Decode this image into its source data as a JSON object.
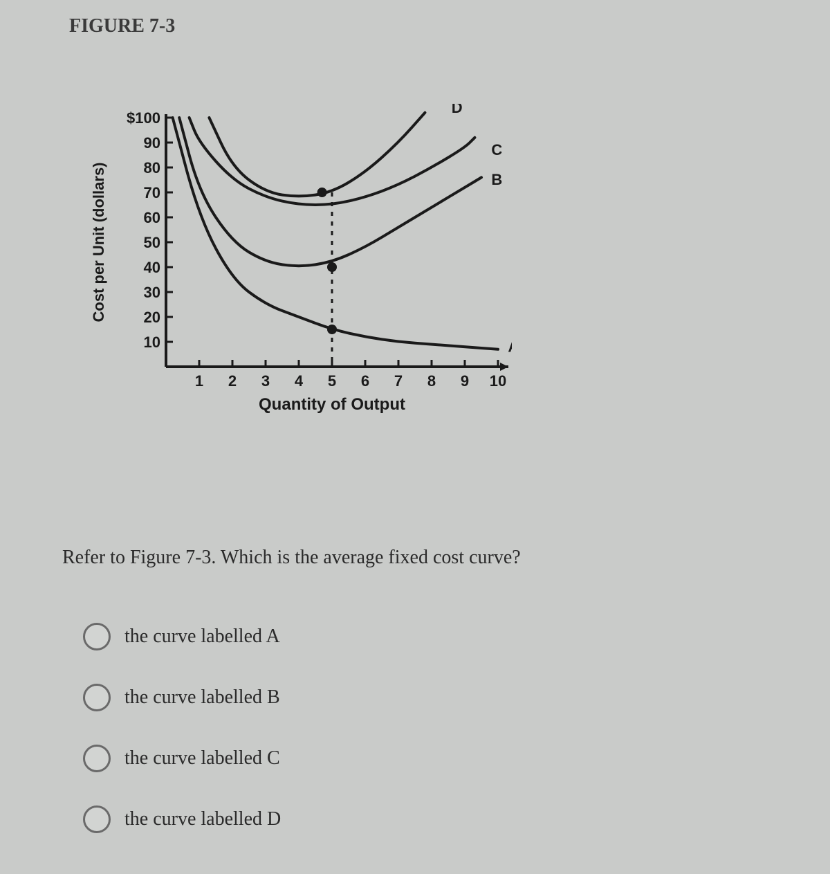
{
  "figure_title": "FIGURE 7-3",
  "question_text": "Refer to Figure 7-3. Which is the average fixed cost curve?",
  "options": [
    {
      "id": "opt-a",
      "label": "the curve labelled A"
    },
    {
      "id": "opt-b",
      "label": "the curve labelled B"
    },
    {
      "id": "opt-c",
      "label": "the curve labelled C"
    },
    {
      "id": "opt-d",
      "label": "the curve labelled D"
    }
  ],
  "chart": {
    "type": "line",
    "background_color": "#c9cbc9",
    "axis_color": "#1a1a1a",
    "axis_width": 4,
    "curve_color": "#1a1a1a",
    "curve_width": 4,
    "point_color": "#1a1a1a",
    "point_radius": 7,
    "dash_pattern": "6,8",
    "ylabel": "Cost per Unit (dollars)",
    "xlabel": "Quantity of Output",
    "label_fontsize": 22,
    "tick_fontsize": 22,
    "ylim": [
      0,
      100
    ],
    "xlim": [
      0,
      10
    ],
    "ytick_values": [
      10,
      20,
      30,
      40,
      50,
      60,
      70,
      80,
      90,
      100
    ],
    "ytick_labels": [
      "10",
      "20",
      "30",
      "40",
      "50",
      "60",
      "70",
      "80",
      "90",
      "$100"
    ],
    "xtick_values": [
      1,
      2,
      3,
      4,
      5,
      6,
      7,
      8,
      9,
      10
    ],
    "xtick_labels": [
      "1",
      "2",
      "3",
      "4",
      "5",
      "6",
      "7",
      "8",
      "9",
      "10"
    ],
    "curves": {
      "A": {
        "label": "A",
        "label_xy": [
          10.3,
          6
        ],
        "points": [
          [
            0.2,
            100
          ],
          [
            1,
            60
          ],
          [
            2,
            35
          ],
          [
            3,
            25
          ],
          [
            4,
            20
          ],
          [
            5,
            15
          ],
          [
            6,
            12
          ],
          [
            7,
            10
          ],
          [
            8,
            9
          ],
          [
            9,
            8
          ],
          [
            10,
            7
          ]
        ]
      },
      "B": {
        "label": "B",
        "label_xy": [
          9.8,
          73
        ],
        "points": [
          [
            0.4,
            100
          ],
          [
            1,
            70
          ],
          [
            2,
            50
          ],
          [
            3,
            42
          ],
          [
            4,
            40
          ],
          [
            5,
            42
          ],
          [
            6,
            48
          ],
          [
            7,
            56
          ],
          [
            8,
            64
          ],
          [
            9,
            72
          ],
          [
            9.5,
            76
          ]
        ]
      },
      "C": {
        "label": "C",
        "label_xy": [
          9.8,
          85
        ],
        "points": [
          [
            0.7,
            100
          ],
          [
            1,
            90
          ],
          [
            2,
            75
          ],
          [
            3,
            68
          ],
          [
            4,
            65
          ],
          [
            5,
            65
          ],
          [
            6,
            68
          ],
          [
            7,
            73
          ],
          [
            8,
            80
          ],
          [
            9,
            88
          ],
          [
            9.3,
            92
          ]
        ]
      },
      "D": {
        "label": "D",
        "label_xy": [
          8.6,
          102
        ],
        "points": [
          [
            1.3,
            100
          ],
          [
            2,
            80
          ],
          [
            3,
            70
          ],
          [
            4,
            68
          ],
          [
            5,
            70
          ],
          [
            6,
            78
          ],
          [
            7,
            90
          ],
          [
            7.8,
            102
          ]
        ]
      }
    },
    "marker_points": [
      [
        4.7,
        70
      ],
      [
        5,
        40
      ],
      [
        5,
        15
      ]
    ],
    "dashed_drop_x": 5,
    "dashed_drop_y_from": 70,
    "dashed_drop_y_to": 0
  }
}
